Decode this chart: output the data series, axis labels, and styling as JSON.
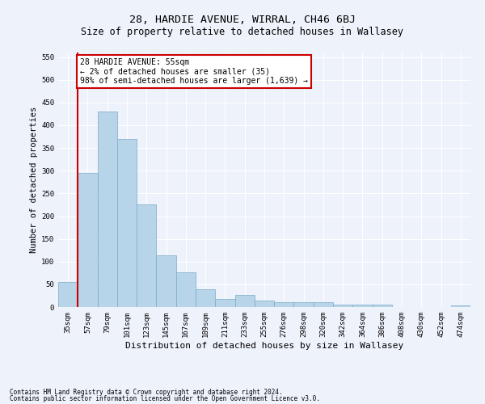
{
  "title": "28, HARDIE AVENUE, WIRRAL, CH46 6BJ",
  "subtitle": "Size of property relative to detached houses in Wallasey",
  "xlabel": "Distribution of detached houses by size in Wallasey",
  "ylabel": "Number of detached properties",
  "categories": [
    "35sqm",
    "57sqm",
    "79sqm",
    "101sqm",
    "123sqm",
    "145sqm",
    "167sqm",
    "189sqm",
    "211sqm",
    "233sqm",
    "255sqm",
    "276sqm",
    "298sqm",
    "320sqm",
    "342sqm",
    "364sqm",
    "386sqm",
    "408sqm",
    "430sqm",
    "452sqm",
    "474sqm"
  ],
  "values": [
    55,
    295,
    430,
    370,
    225,
    113,
    77,
    39,
    17,
    27,
    14,
    10,
    10,
    10,
    6,
    5,
    6,
    0,
    0,
    0,
    4
  ],
  "bar_color": "#b8d4e8",
  "bar_edge_color": "#7aaac8",
  "marker_color": "#cc0000",
  "ylim": [
    0,
    560
  ],
  "yticks": [
    0,
    50,
    100,
    150,
    200,
    250,
    300,
    350,
    400,
    450,
    500,
    550
  ],
  "annotation_text": "28 HARDIE AVENUE: 55sqm\n← 2% of detached houses are smaller (35)\n98% of semi-detached houses are larger (1,639) →",
  "annotation_box_color": "#ffffff",
  "annotation_box_edge_color": "#cc0000",
  "footer_line1": "Contains HM Land Registry data © Crown copyright and database right 2024.",
  "footer_line2": "Contains public sector information licensed under the Open Government Licence v3.0.",
  "background_color": "#eef2fb",
  "grid_color": "#ffffff",
  "title_fontsize": 9.5,
  "subtitle_fontsize": 8.5,
  "xlabel_fontsize": 8,
  "ylabel_fontsize": 7.5,
  "tick_fontsize": 6.5,
  "annotation_fontsize": 7,
  "footer_fontsize": 5.5
}
